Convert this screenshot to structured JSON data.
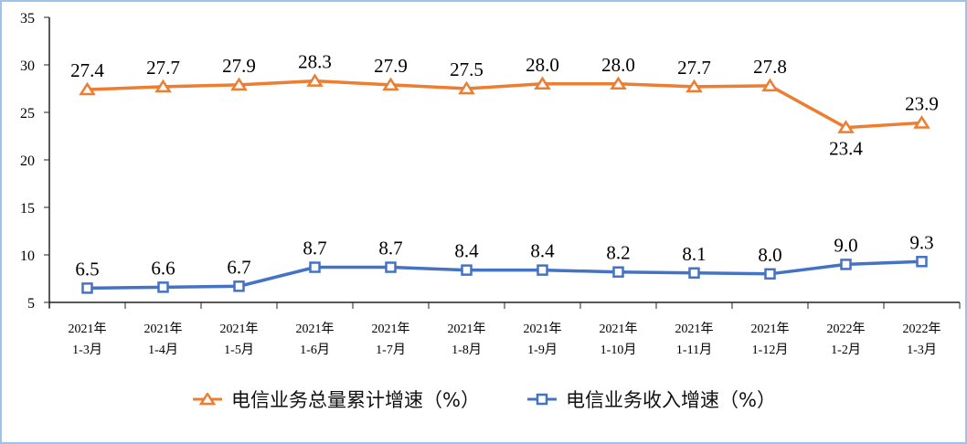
{
  "chart_data": {
    "type": "line",
    "categories": [
      [
        "2021年",
        "1-3月"
      ],
      [
        "2021年",
        "1-4月"
      ],
      [
        "2021年",
        "1-5月"
      ],
      [
        "2021年",
        "1-6月"
      ],
      [
        "2021年",
        "1-7月"
      ],
      [
        "2021年",
        "1-8月"
      ],
      [
        "2021年",
        "1-9月"
      ],
      [
        "2021年",
        "1-10月"
      ],
      [
        "2021年",
        "1-11月"
      ],
      [
        "2021年",
        "1-12月"
      ],
      [
        "2022年",
        "1-2月"
      ],
      [
        "2022年",
        "1-3月"
      ]
    ],
    "ylim": [
      5,
      35
    ],
    "yticks": [
      5,
      10,
      15,
      20,
      25,
      30,
      35
    ],
    "grid": false,
    "legend_position": "bottom",
    "series": [
      {
        "name": "电信业务总量累计增速（%）",
        "color": "#ed7d31",
        "marker": "triangle",
        "values": [
          27.4,
          27.7,
          27.9,
          28.3,
          27.9,
          27.5,
          28.0,
          28.0,
          27.7,
          27.8,
          23.4,
          23.9
        ]
      },
      {
        "name": "电信业务收入增速（%）",
        "color": "#4472c4",
        "marker": "square",
        "values": [
          6.5,
          6.6,
          6.7,
          8.7,
          8.7,
          8.4,
          8.4,
          8.2,
          8.1,
          8.0,
          9.0,
          9.3
        ]
      }
    ]
  }
}
